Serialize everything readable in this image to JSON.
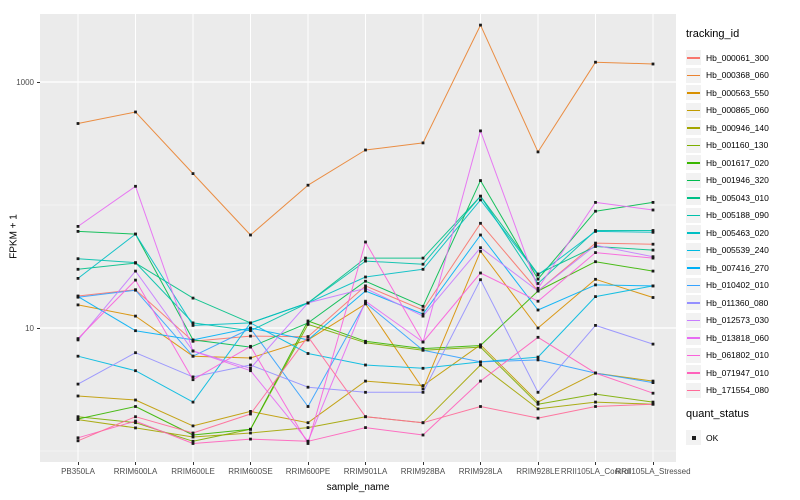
{
  "chart_data": {
    "type": "line",
    "title": "",
    "xlabel": "sample_name",
    "ylabel": "FPKM + 1",
    "y_scale": "log10",
    "y_axis_ticks": [
      "10",
      "1000"
    ],
    "y_tick_values": [
      10,
      1000
    ],
    "y_minor_values": [
      1,
      100
    ],
    "ylim": [
      0.85,
      3700
    ],
    "grid": true,
    "panel_bg": "#EBEBEB",
    "grid_color": "#FFFFFF",
    "point_shape": "square",
    "point_color": "#1a1a1a",
    "legend_position": "right",
    "legend_title": "tracking_id",
    "quant_legend": {
      "title": "quant_status",
      "items": [
        {
          "label": "OK"
        }
      ]
    },
    "categories": [
      "PB350LA",
      "RRIM600LA",
      "RRIM600LE",
      "RRIM600SE",
      "RRIM600PE",
      "RRIM901LA",
      "RRIM928BA",
      "RRIM928LA",
      "RRIM928LE",
      "RRII105LA_Control",
      "RRII105LA_Stressed"
    ],
    "series": [
      {
        "name": "Hb_000061_300",
        "color": "#F8766D",
        "values": [
          18.2,
          20.5,
          7.8,
          8.6,
          8.5,
          22,
          14,
          71,
          20,
          49,
          48
        ]
      },
      {
        "name": "Hb_000368_060",
        "color": "#EA8331",
        "values": [
          460,
          570,
          180,
          57,
          145,
          280,
          320,
          2900,
          270,
          1450,
          1400
        ]
      },
      {
        "name": "Hb_000563_550",
        "color": "#D89000",
        "values": [
          15.4,
          12.5,
          5.9,
          5.7,
          8,
          15.7,
          3.2,
          42,
          10,
          24.9,
          17.7
        ]
      },
      {
        "name": "Hb_000865_060",
        "color": "#C09B00",
        "values": [
          2.8,
          2.6,
          1.6,
          2.1,
          1.7,
          3.7,
          3.4,
          7.3,
          2.5,
          4.3,
          3.7
        ]
      },
      {
        "name": "Hb_000946_140",
        "color": "#A3A500",
        "values": [
          1.8,
          1.54,
          1.3,
          1.4,
          1.55,
          1.9,
          1.7,
          5,
          2.2,
          2.5,
          2.4
        ]
      },
      {
        "name": "Hb_001160_130",
        "color": "#7CAE00",
        "values": [
          1.9,
          1.7,
          1.2,
          1.5,
          10.7,
          7.6,
          6.6,
          7,
          2.4,
          2.9,
          2.5
        ]
      },
      {
        "name": "Hb_001617_020",
        "color": "#39B600",
        "values": [
          1.82,
          2.3,
          1.35,
          1.5,
          11.4,
          7.8,
          6.8,
          7.2,
          20,
          34.6,
          29
        ]
      },
      {
        "name": "Hb_001946_320",
        "color": "#00BB4E",
        "values": [
          61,
          58,
          8,
          7,
          11,
          24,
          15,
          158,
          25,
          89,
          105
        ]
      },
      {
        "name": "Hb_005043_010",
        "color": "#00C087",
        "values": [
          30,
          33.7,
          17.5,
          11,
          16,
          37,
          37,
          118,
          27.5,
          46,
          43
        ]
      },
      {
        "name": "Hb_005188_090",
        "color": "#00C1AB",
        "values": [
          36.6,
          34,
          11,
          9.5,
          16,
          35,
          33,
          118,
          23,
          62,
          62
        ]
      },
      {
        "name": "Hb_005463_020",
        "color": "#00BFC4",
        "values": [
          25.3,
          58,
          10.5,
          11,
          16,
          26,
          30,
          110,
          27,
          61,
          60
        ]
      },
      {
        "name": "Hb_005539_240",
        "color": "#00BAE0",
        "values": [
          5.9,
          4.5,
          2.5,
          11,
          6.2,
          5.0,
          4.7,
          5.3,
          5.8,
          18,
          22
        ]
      },
      {
        "name": "Hb_007416_270",
        "color": "#00B0F6",
        "values": [
          18,
          9.5,
          8,
          10,
          8,
          20,
          13,
          57,
          14,
          22.4,
          22
        ]
      },
      {
        "name": "Hb_010402_010",
        "color": "#35A2FF",
        "values": [
          17.8,
          20.3,
          5.9,
          9.9,
          2.3,
          16,
          6.6,
          5.3,
          5.5,
          4.3,
          3.6
        ]
      },
      {
        "name": "Hb_011360_080",
        "color": "#9590FF",
        "values": [
          3.5,
          6.3,
          4.0,
          5.0,
          3.3,
          3.0,
          3.0,
          24.7,
          3.0,
          10.5,
          7.4
        ]
      },
      {
        "name": "Hb_012573_030",
        "color": "#C77CFF",
        "values": [
          8,
          29,
          6.5,
          4.7,
          16,
          21,
          12.5,
          45,
          20,
          47,
          38
        ]
      },
      {
        "name": "Hb_013818_060",
        "color": "#E76BF3",
        "values": [
          67,
          142,
          6.5,
          4.5,
          1.2,
          16.5,
          7.7,
          400,
          21,
          105,
          91
        ]
      },
      {
        "name": "Hb_061802_010",
        "color": "#FA62DB",
        "values": [
          8.2,
          24.5,
          3.8,
          7.1,
          1.15,
          50,
          7.7,
          28,
          16.5,
          41,
          37
        ]
      },
      {
        "name": "Hb_071947_010",
        "color": "#FF62BC",
        "values": [
          1.28,
          1.75,
          1.15,
          1.25,
          1.2,
          1.55,
          1.35,
          3.7,
          8.4,
          4.3,
          2.95
        ]
      },
      {
        "name": "Hb_171554_080",
        "color": "#FF6A98",
        "values": [
          1.21,
          1.9,
          1.4,
          2.0,
          8.5,
          1.9,
          1.7,
          2.3,
          1.85,
          2.3,
          2.4
        ]
      }
    ]
  }
}
